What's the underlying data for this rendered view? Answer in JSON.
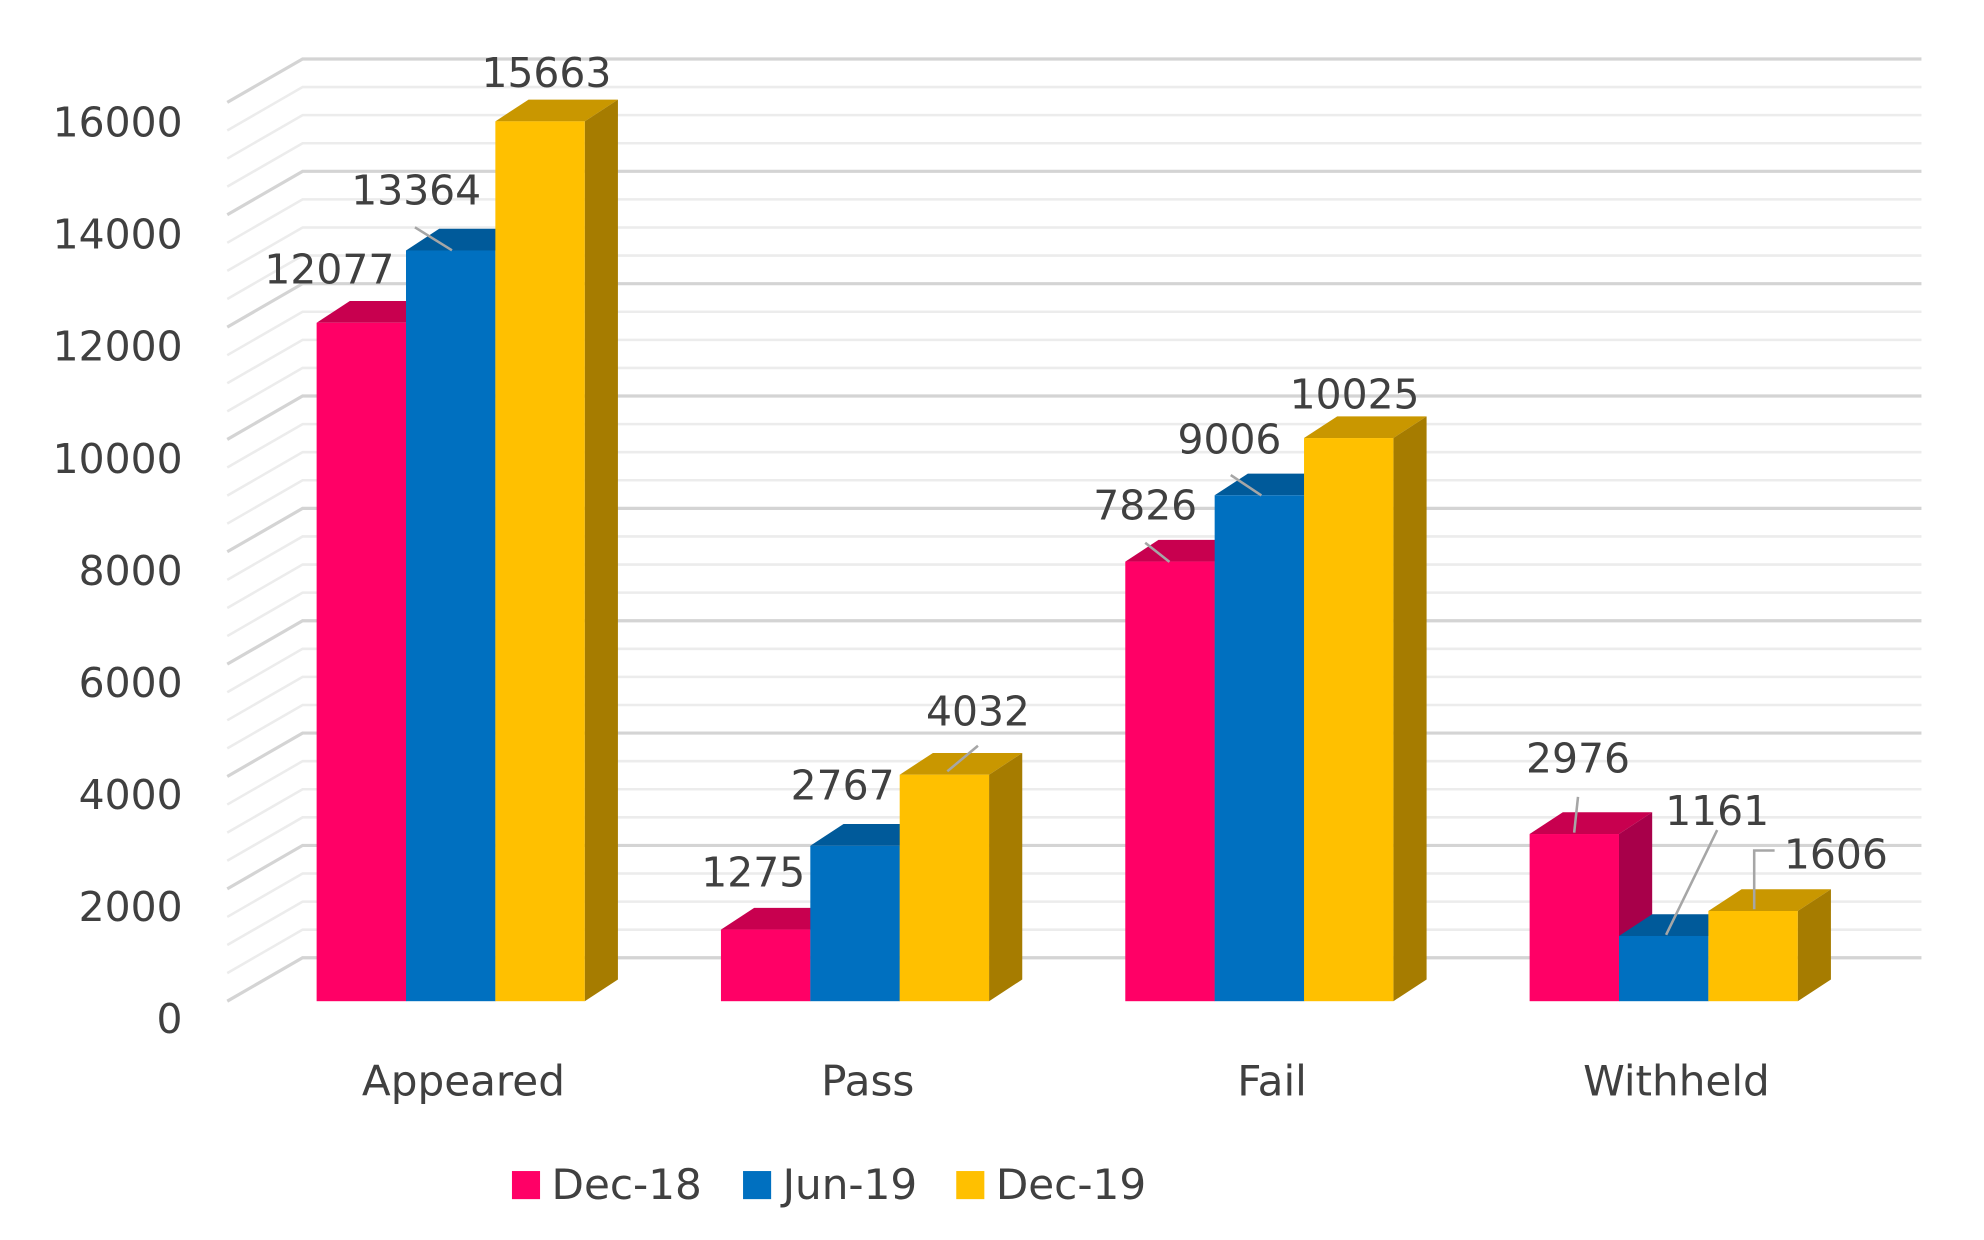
{
  "chart_data": {
    "type": "bar",
    "style": "3d-clustered-column",
    "categories": [
      "Appeared",
      "Pass",
      "Fail",
      "Withheld"
    ],
    "series": [
      {
        "name": "Dec-18",
        "values": [
          12077,
          1275,
          7826,
          2976
        ],
        "color": "#FF0066",
        "side_color": "#A8004A",
        "top_color": "#C8004F"
      },
      {
        "name": "Jun-19",
        "values": [
          13364,
          2767,
          9006,
          1161
        ],
        "color": "#0070C0",
        "side_color": "#004E86",
        "top_color": "#005A9A"
      },
      {
        "name": "Dec-19",
        "values": [
          15663,
          4032,
          10025,
          1606
        ],
        "color": "#FFC000",
        "side_color": "#A67C00",
        "top_color": "#C99700"
      }
    ],
    "yticks": [
      "0",
      "2000",
      "4000",
      "6000",
      "8000",
      "10000",
      "12000",
      "14000",
      "16000"
    ],
    "ylim": [
      0,
      16000
    ],
    "grid": true,
    "data_labels": true,
    "legend_position": "bottom",
    "title": "",
    "xlabel": "",
    "ylabel": ""
  }
}
